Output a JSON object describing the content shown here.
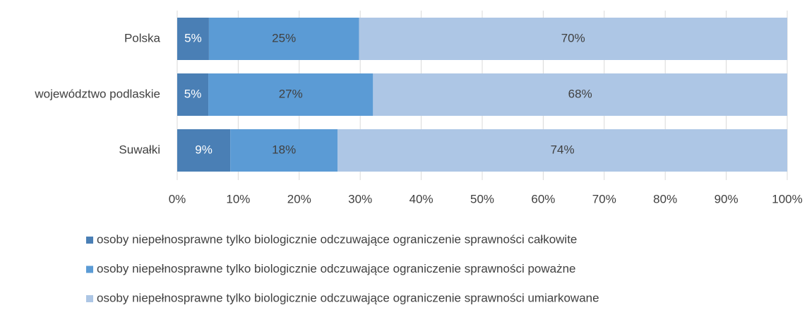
{
  "chart_data": {
    "type": "stacked-bar-horizontal",
    "categories": [
      "Polska",
      "województwo podlaskie",
      "Suwałki"
    ],
    "series": [
      {
        "name": "osoby niepełnosprawne tylko biologicznie odczuwające ograniczenie sprawności całkowite",
        "color": "#4a7fb5",
        "values": [
          5.2,
          5.1,
          8.7
        ],
        "value_labels": [
          "5%",
          "5%",
          "9%"
        ]
      },
      {
        "name": "osoby niepełnosprawne tylko biologicznie odczuwające ograniczenie sprawności poważne",
        "color": "#5b9bd5",
        "values": [
          24.6,
          27.0,
          17.6
        ],
        "value_labels": [
          "25%",
          "27%",
          "18%"
        ]
      },
      {
        "name": "osoby niepełnosprawne tylko biologicznie odczuwające ograniczenie sprawności umiarkowane",
        "color": "#adc6e5",
        "values": [
          70.2,
          67.9,
          73.7
        ],
        "value_labels": [
          "70%",
          "68%",
          "74%"
        ]
      }
    ],
    "xlim": [
      0,
      100
    ],
    "xticks": [
      {
        "value": 0,
        "label": "0%"
      },
      {
        "value": 10,
        "label": "10%"
      },
      {
        "value": 20,
        "label": "20%"
      },
      {
        "value": 30,
        "label": "30%"
      },
      {
        "value": 40,
        "label": "40%"
      },
      {
        "value": 50,
        "label": "50%"
      },
      {
        "value": 60,
        "label": "60%"
      },
      {
        "value": 70,
        "label": "70%"
      },
      {
        "value": 80,
        "label": "80%"
      },
      {
        "value": 90,
        "label": "90%"
      },
      {
        "value": 100,
        "label": "100%"
      }
    ],
    "grid": true,
    "legend": "bottom"
  }
}
